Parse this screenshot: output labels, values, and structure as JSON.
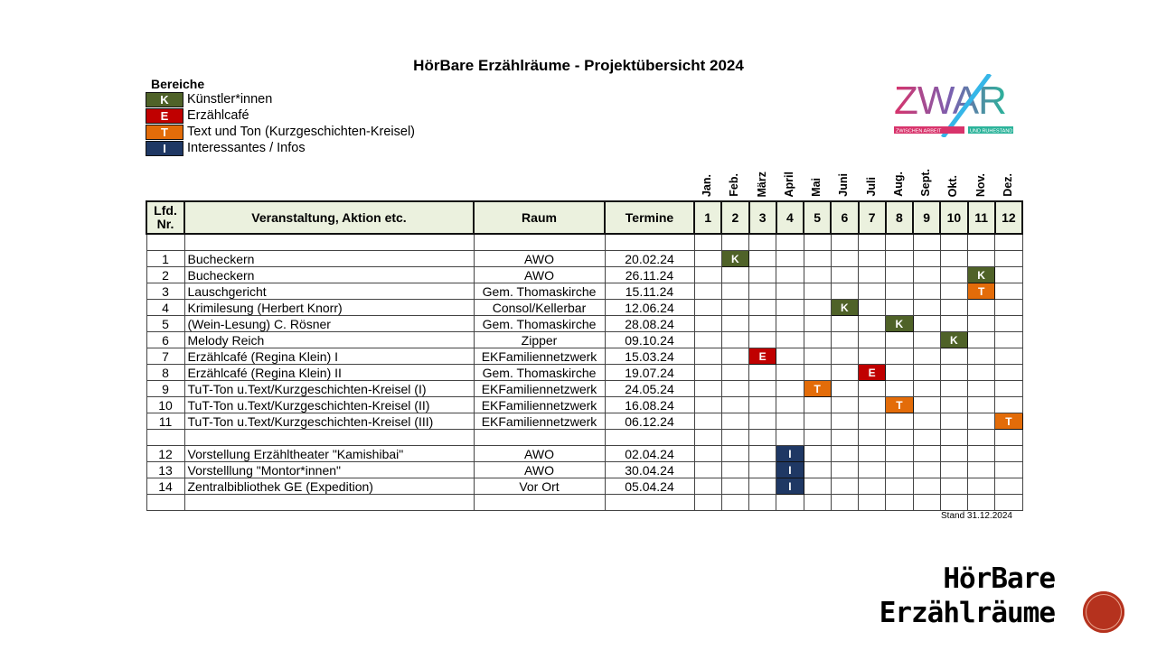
{
  "title": "HörBare Erzählräume - Projektübersicht 2024",
  "legend": {
    "heading": "Bereiche",
    "items": [
      {
        "code": "K",
        "label": "Künstler*innen",
        "color": "#4f6228"
      },
      {
        "code": "E",
        "label": "Erzählcafé",
        "color": "#c00000"
      },
      {
        "code": "T",
        "label": "Text und Ton (Kurzgeschichten-Kreisel)",
        "color": "#e36c09"
      },
      {
        "code": "I",
        "label": "Interessantes / Infos",
        "color": "#1f3864"
      }
    ]
  },
  "logo": {
    "name": "ZWAR",
    "tagline_left": "ZWISCHEN ARBEIT",
    "tagline_right": "UND RUHESTAND"
  },
  "months": [
    "Jan.",
    "Feb.",
    "März",
    "April",
    "Mai",
    "Juni",
    "Juli",
    "Aug.",
    "Sept.",
    "Okt.",
    "Nov.",
    "Dez."
  ],
  "table": {
    "headers": {
      "nr": "Lfd. Nr.",
      "event": "Veranstaltung, Aktion etc.",
      "room": "Raum",
      "date": "Termine"
    },
    "month_numbers": [
      "1",
      "2",
      "3",
      "4",
      "5",
      "6",
      "7",
      "8",
      "9",
      "10",
      "11",
      "12"
    ],
    "groups": [
      [
        {
          "nr": "1",
          "event": "Bucheckern",
          "room": "AWO",
          "date": "20.02.24",
          "month": 2,
          "code": "K"
        },
        {
          "nr": "2",
          "event": "Bucheckern",
          "room": "AWO",
          "date": "26.11.24",
          "month": 11,
          "code": "K"
        },
        {
          "nr": "3",
          "event": "Lauschgericht",
          "room": "Gem. Thomaskirche",
          "date": "15.11.24",
          "month": 11,
          "code": "T"
        },
        {
          "nr": "4",
          "event": "Krimilesung (Herbert Knorr)",
          "room": "Consol/Kellerbar",
          "date": "12.06.24",
          "month": 6,
          "code": "K"
        },
        {
          "nr": "5",
          "event": "(Wein-Lesung) C. Rösner",
          "room": "Gem. Thomaskirche",
          "date": "28.08.24",
          "month": 8,
          "code": "K"
        },
        {
          "nr": "6",
          "event": "Melody Reich",
          "room": "Zipper",
          "date": "09.10.24",
          "month": 10,
          "code": "K"
        },
        {
          "nr": "7",
          "event": "Erzählcafé (Regina Klein) I",
          "room": "EKFamiliennetzwerk",
          "date": "15.03.24",
          "month": 3,
          "code": "E"
        },
        {
          "nr": "8",
          "event": "Erzählcafé (Regina Klein) II",
          "room": "Gem. Thomaskirche",
          "date": "19.07.24",
          "month": 7,
          "code": "E"
        },
        {
          "nr": "9",
          "event": "TuT-Ton u.Text/Kurzgeschichten-Kreisel (I)",
          "room": "EKFamiliennetzwerk",
          "date": "24.05.24",
          "month": 5,
          "code": "T"
        },
        {
          "nr": "10",
          "event": "TuT-Ton u.Text/Kurzgeschichten-Kreisel (II)",
          "room": "EKFamiliennetzwerk",
          "date": "16.08.24",
          "month": 8,
          "code": "T"
        },
        {
          "nr": "11",
          "event": "TuT-Ton u.Text/Kurzgeschichten-Kreisel (III)",
          "room": "EKFamiliennetzwerk",
          "date": "06.12.24",
          "month": 12,
          "code": "T"
        }
      ],
      [
        {
          "nr": "12",
          "event": "Vorstellung Erzähltheater \"Kamishibai\"",
          "room": "AWO",
          "date": "02.04.24",
          "month": 4,
          "code": "I"
        },
        {
          "nr": "13",
          "event": "Vorstelllung \"Montor*innen\"",
          "room": "AWO",
          "date": "30.04.24",
          "month": 4,
          "code": "I"
        },
        {
          "nr": "14",
          "event": "Zentralbibliothek GE (Expedition)",
          "room": "Vor Ort",
          "date": "05.04.24",
          "month": 4,
          "code": "I"
        }
      ]
    ]
  },
  "stand": "Stand 31.12.2024",
  "brand": {
    "line1": "HörBare",
    "line2": "Erzählräume"
  }
}
